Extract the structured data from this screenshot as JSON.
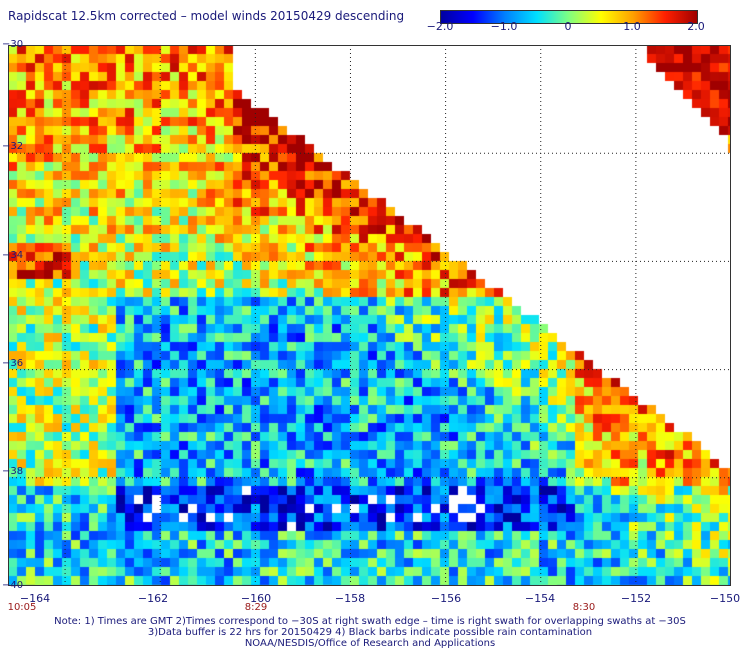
{
  "title": "Rapidscat 12.5km corrected – model winds 20150429 descending",
  "colorbar": {
    "ticks": [
      "−2.0",
      "−1.0",
      "0",
      "1.0",
      "2.0"
    ],
    "range": [
      -2.0,
      2.0
    ],
    "colors": [
      "#0000a0",
      "#0000ff",
      "#0080ff",
      "#00e0ff",
      "#80ff80",
      "#ffff00",
      "#ffa000",
      "#ff2000",
      "#a00000"
    ]
  },
  "chart_data": {
    "type": "heatmap",
    "title": "Rapidscat 12.5km corrected – model winds 20150429 descending",
    "x_ticks": [
      "−164",
      "−162",
      "−160",
      "−158",
      "−156",
      "−154",
      "−152",
      "−150"
    ],
    "x_values": [
      -164,
      -162,
      -160,
      -158,
      -156,
      -154,
      -152,
      -150
    ],
    "y_ticks": [
      "−30",
      "−32",
      "−34",
      "−36",
      "−38",
      "−40"
    ],
    "y_values": [
      -30,
      -32,
      -34,
      -36,
      -38,
      -40
    ],
    "xlim": [
      -165.2,
      -150
    ],
    "ylim": [
      -40,
      -30
    ],
    "value_range": [
      -2.0,
      2.0
    ],
    "grid": true,
    "time_labels": [
      "10:05",
      "8:29",
      "8:30"
    ]
  },
  "notes": {
    "line1": "Note: 1) Times are GMT 2)Times correspond to −30S at right swath edge – time is right swath for overlapping swaths at −30S",
    "line2": "3)Data buffer is 22 hrs for 20150429 4) Black barbs indicate possible rain contamination",
    "line3": "NOAA/NESDIS/Office of Research and Applications"
  }
}
